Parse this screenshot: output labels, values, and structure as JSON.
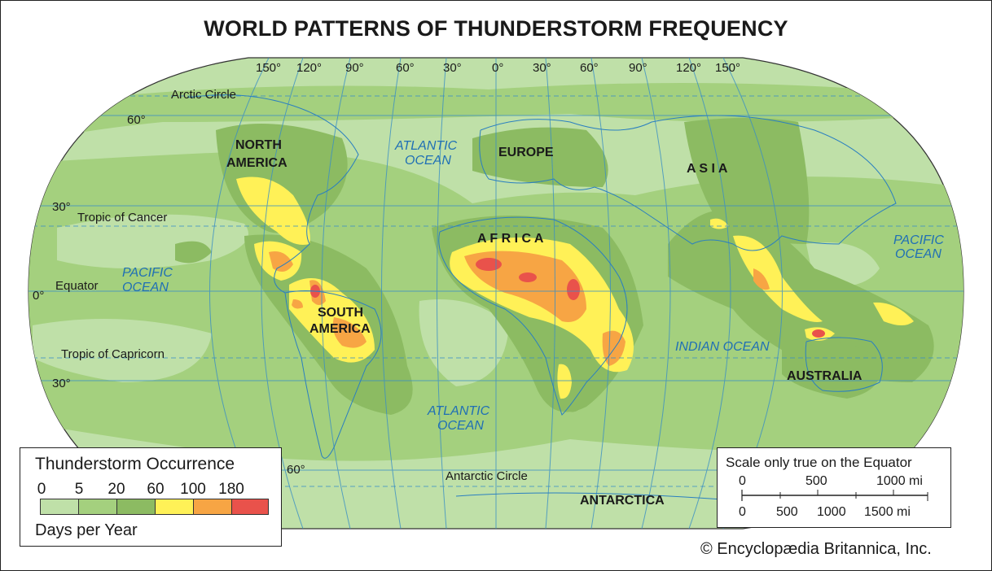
{
  "title": "WORLD PATTERNS OF THUNDERSTORM FREQUENCY",
  "colors": {
    "ocean_base": "#bfe0a8",
    "band_5_20": "#a4d07e",
    "band_20_60": "#8cbb62",
    "band_60_100": "#fff157",
    "band_100_180": "#f7a544",
    "band_180_plus": "#e9524b",
    "grid": "#3a8fc4",
    "coast": "#2a7fc0"
  },
  "latitude_lines": {
    "arctic": "Arctic Circle",
    "cancer": "Tropic of Cancer",
    "equator": "Equator",
    "capricorn": "Tropic of Capricorn",
    "antarctic": "Antarctic Circle"
  },
  "degree_labels": {
    "lat": [
      "60°",
      "30°",
      "0°",
      "30°",
      "60°"
    ],
    "lon": [
      "150°",
      "120°",
      "90°",
      "60°",
      "30°",
      "0°",
      "30°",
      "60°",
      "90°",
      "120°",
      "150°"
    ]
  },
  "continents": {
    "north_america_1": "NORTH",
    "north_america_2": "AMERICA",
    "south_america_1": "SOUTH",
    "south_america_2": "AMERICA",
    "europe": "EUROPE",
    "africa": "A F R I C A",
    "asia": "A S I A",
    "australia": "AUSTRALIA",
    "antarctica": "ANTARCTICA"
  },
  "oceans": {
    "atlantic_n_1": "ATLANTIC",
    "atlantic_n_2": "OCEAN",
    "atlantic_s_1": "ATLANTIC",
    "atlantic_s_2": "OCEAN",
    "pacific_e_1": "PACIFIC",
    "pacific_e_2": "OCEAN",
    "pacific_w_1": "PACIFIC",
    "pacific_w_2": "OCEAN",
    "indian": "INDIAN OCEAN"
  },
  "legend": {
    "title": "Thunderstorm Occurrence",
    "ticks": [
      "0",
      "5",
      "20",
      "60",
      "100",
      "180"
    ],
    "unit": "Days per Year"
  },
  "scale": {
    "title": "Scale only true on the Equator",
    "miles_top": [
      "0",
      "500",
      "1000 mi"
    ],
    "miles_bottom": [
      "0",
      "500",
      "1000",
      "1500 mi"
    ]
  },
  "credit": "© Encyclopædia Britannica, Inc."
}
